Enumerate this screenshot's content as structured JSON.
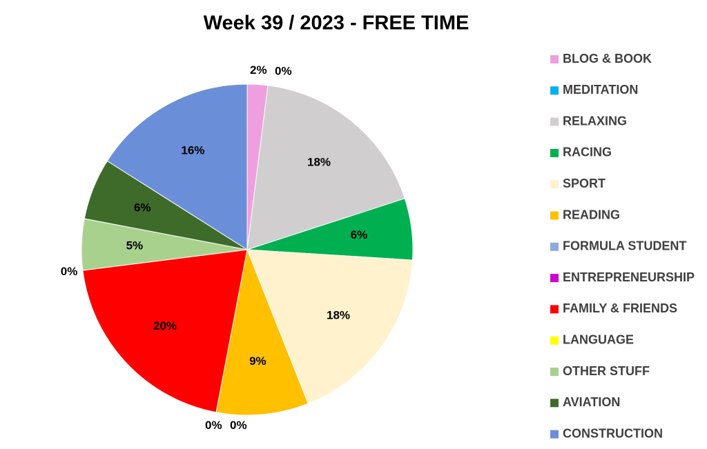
{
  "chart_data": {
    "type": "pie",
    "title": "Week 39 / 2023 - FREE TIME",
    "categories": [
      "BLOG & BOOK",
      "MEDITATION",
      "RELAXING",
      "RACING",
      "SPORT",
      "READING",
      "FORMULA STUDENT",
      "ENTREPRENEURSHIP",
      "FAMILY & FRIENDS",
      "LANGUAGE",
      "OTHER STUFF",
      "AVIATION",
      "CONSTRUCTION"
    ],
    "values": [
      2,
      0,
      18,
      6,
      18,
      9,
      0,
      0,
      20,
      0,
      5,
      6,
      16
    ],
    "value_labels": [
      "2%",
      "0%",
      "18%",
      "6%",
      "18%",
      "9%",
      "0%",
      "0%",
      "20%",
      "0%",
      "5%",
      "6%",
      "16%"
    ],
    "colors": [
      "#EE9FE0",
      "#00B0F0",
      "#D0CECE",
      "#00B050",
      "#FFF2CC",
      "#FFC000",
      "#8EA9DB",
      "#CC00CC",
      "#FF0000",
      "#FFFF00",
      "#A9D18E",
      "#3F6B2A",
      "#6A8FD8"
    ],
    "legend": "right"
  }
}
